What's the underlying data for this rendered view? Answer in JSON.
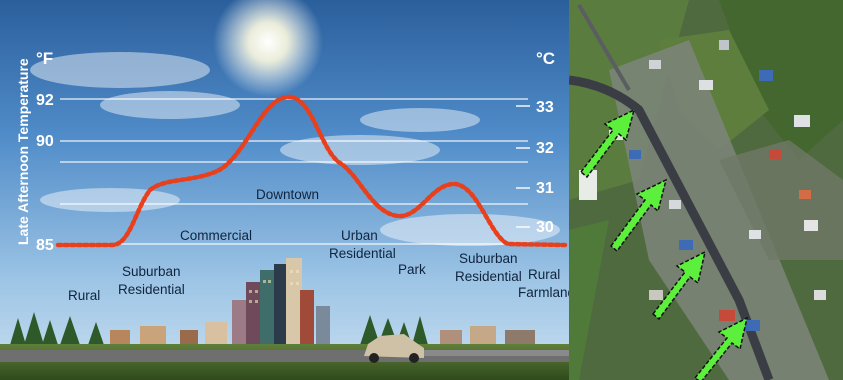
{
  "diagram": {
    "axis_title": "Late Afternoon Temperature",
    "unit_f": "°F",
    "unit_c": "°C",
    "f_ticks": [
      "92",
      "90",
      "85"
    ],
    "c_ticks": [
      "33",
      "32",
      "31",
      "30"
    ],
    "zones": [
      {
        "label": [
          "Rural"
        ]
      },
      {
        "label": [
          "Suburban",
          "Residential"
        ]
      },
      {
        "label": [
          "Commercial"
        ]
      },
      {
        "label": [
          "Downtown"
        ]
      },
      {
        "label": [
          "Urban",
          "Residential"
        ]
      },
      {
        "label": [
          "Park"
        ]
      },
      {
        "label": [
          "Suburban",
          "Residential"
        ]
      },
      {
        "label": [
          "Rural",
          "Farmland"
        ]
      }
    ],
    "curve_color": "#e8401c"
  },
  "satellite": {
    "arrow_color": "#5cf03c",
    "arrow_count": 4
  }
}
